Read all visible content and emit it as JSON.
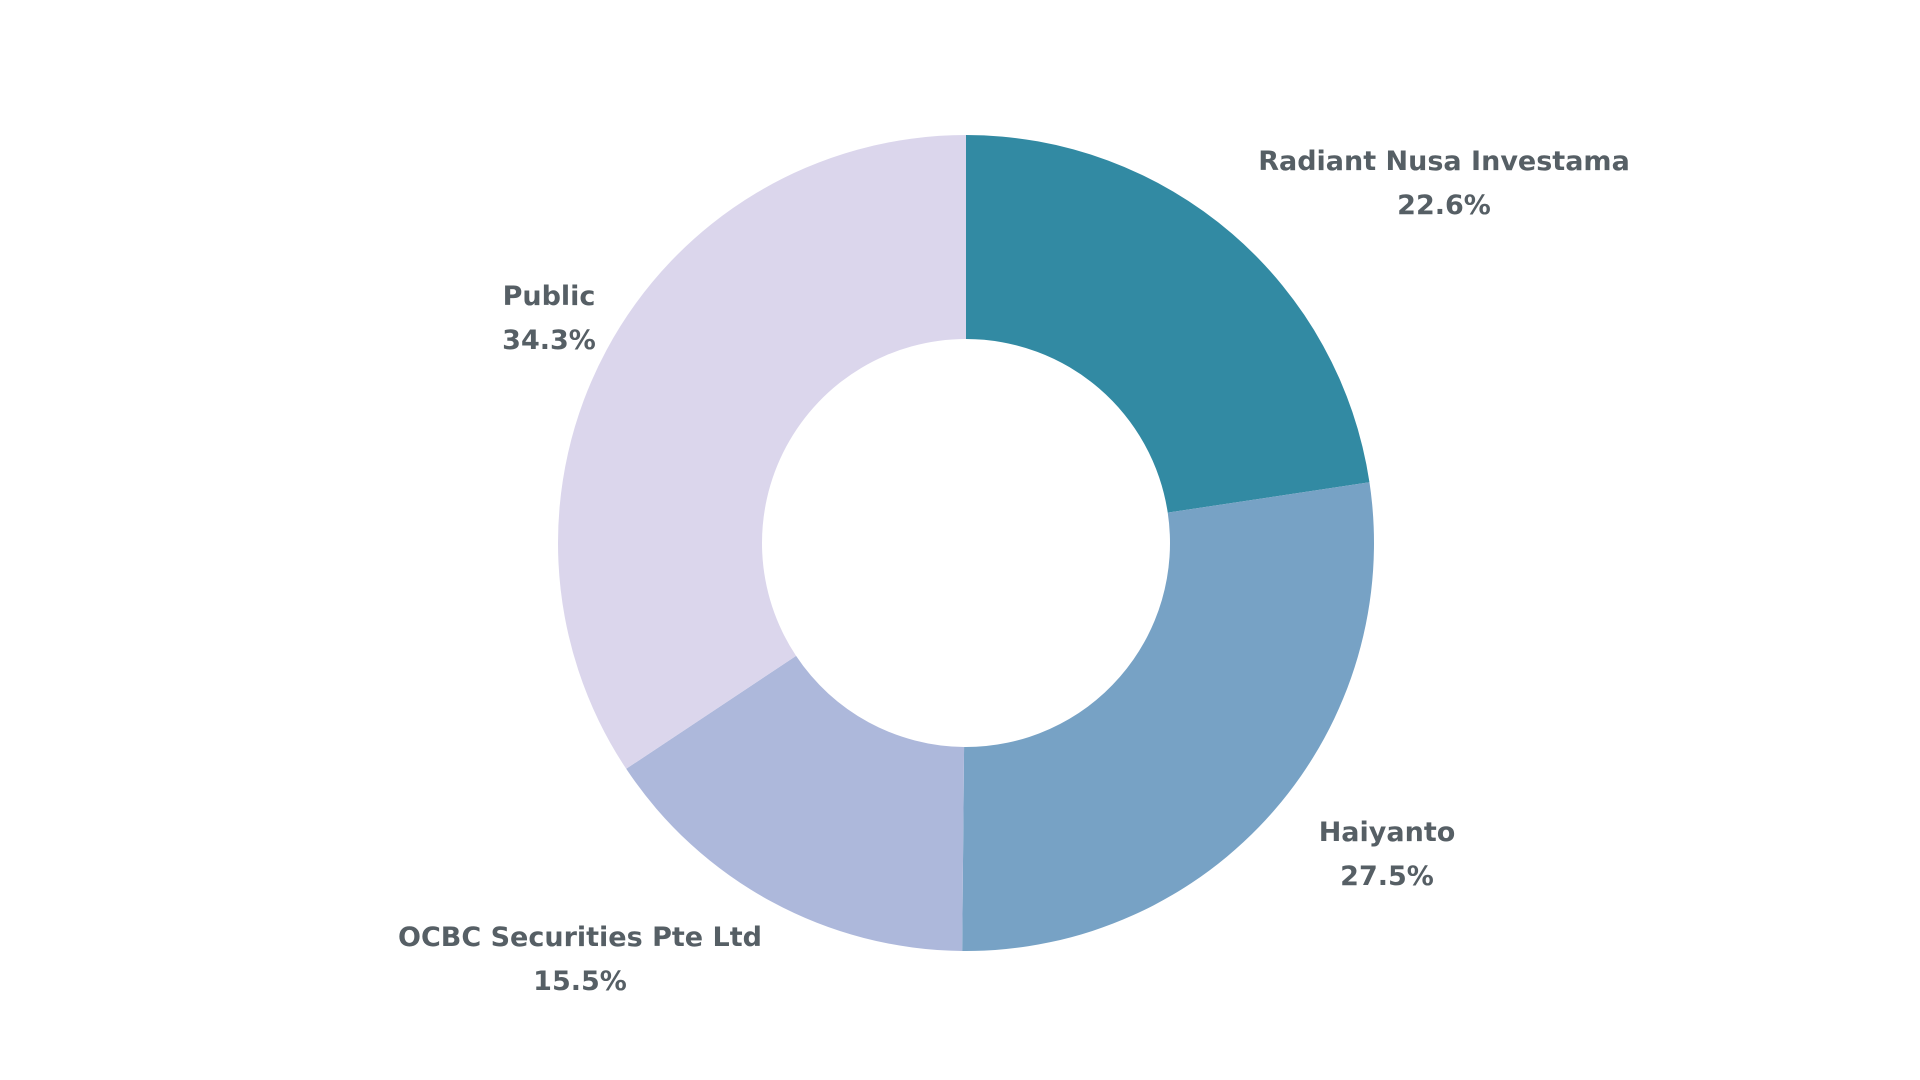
{
  "chart_data": {
    "type": "pie",
    "donut": true,
    "start": "12 o'clock",
    "direction": "clockwise",
    "legend": "none",
    "slices": [
      {
        "label": "Radiant Nusa Investama",
        "value": 22.6,
        "value_label": "22.6%",
        "color": "#328aa3"
      },
      {
        "label": "Haiyanto",
        "value": 27.5,
        "value_label": "27.5%",
        "color": "#77a2c5"
      },
      {
        "label": "OCBC Securities Pte Ltd",
        "value": 15.5,
        "value_label": "15.5%",
        "color": "#adb8db"
      },
      {
        "label": "Public",
        "value": 34.3,
        "value_label": "34.3%",
        "color": "#dbd6ec"
      }
    ]
  }
}
